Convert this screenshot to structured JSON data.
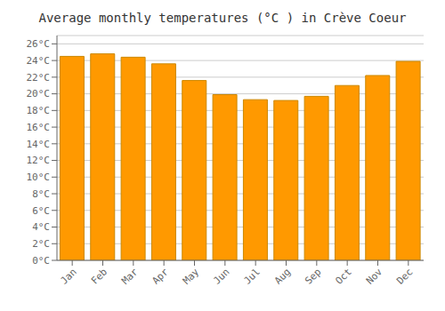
{
  "chart_data": {
    "type": "bar",
    "title": "Average monthly temperatures (°C ) in Crève Coeur",
    "categories": [
      "Jan",
      "Feb",
      "Mar",
      "Apr",
      "May",
      "Jun",
      "Jul",
      "Aug",
      "Sep",
      "Oct",
      "Nov",
      "Dec"
    ],
    "values": [
      24.5,
      24.8,
      24.4,
      23.6,
      21.6,
      19.9,
      19.3,
      19.2,
      19.7,
      21.0,
      22.2,
      23.9
    ],
    "color": "#FF9900",
    "ylim": [
      0,
      27
    ],
    "yticks": [
      {
        "value": 0,
        "label": "0°C"
      },
      {
        "value": 2,
        "label": "2°C"
      },
      {
        "value": 4,
        "label": "4°C"
      },
      {
        "value": 6,
        "label": "6°C"
      },
      {
        "value": 8,
        "label": "8°C"
      },
      {
        "value": 10,
        "label": "10°C"
      },
      {
        "value": 12,
        "label": "12°C"
      },
      {
        "value": 14,
        "label": "14°C"
      },
      {
        "value": 16,
        "label": "16°C"
      },
      {
        "value": 18,
        "label": "18°C"
      },
      {
        "value": 20,
        "label": "20°C"
      },
      {
        "value": 22,
        "label": "22°C"
      },
      {
        "value": 24,
        "label": "24°C"
      },
      {
        "value": 26,
        "label": "26°C"
      }
    ],
    "grid": true
  }
}
